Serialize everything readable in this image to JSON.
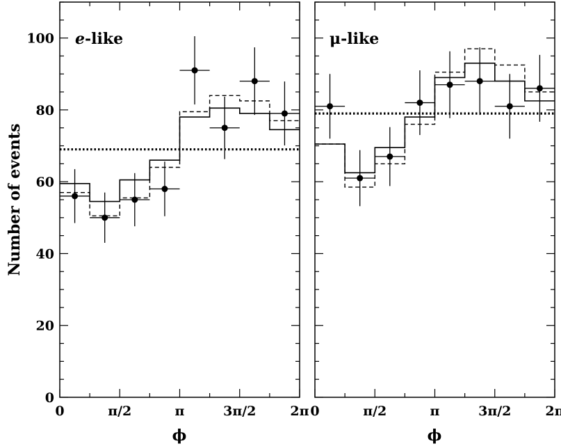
{
  "chart_data": [
    {
      "type": "line",
      "panel_label_italic": "e",
      "panel_label_rest": "-like",
      "xlabel": "ϕ",
      "ylabel": "Number of events",
      "xlim": [
        0,
        6.2832
      ],
      "ylim": [
        0,
        110
      ],
      "x_ticks": [
        0,
        1.5708,
        3.1416,
        4.7124,
        6.2832
      ],
      "x_tick_labels": [
        "0",
        "π/2",
        "π",
        "3π/2",
        "2π"
      ],
      "y_ticks": [
        0,
        20,
        40,
        60,
        80,
        100
      ],
      "y_tick_labels": [
        "0",
        "20",
        "40",
        "60",
        "80",
        "100"
      ],
      "bin_edges": [
        0,
        0.7854,
        1.5708,
        2.3562,
        3.1416,
        3.927,
        4.7124,
        5.4978,
        6.2832
      ],
      "data_points": {
        "x": [
          0.3927,
          1.1781,
          1.9635,
          2.7489,
          3.5343,
          4.3197,
          5.1051,
          5.8905
        ],
        "y": [
          56,
          50,
          55,
          58,
          91,
          75,
          88,
          79
        ],
        "yerr": [
          7.5,
          7,
          7.4,
          7.6,
          9.5,
          8.7,
          9.4,
          8.9
        ]
      },
      "series": [
        {
          "style": "solid",
          "values": [
            59.5,
            54.5,
            60.5,
            66,
            78,
            80.5,
            79,
            74.5
          ]
        },
        {
          "style": "dashed",
          "values": [
            57,
            50.5,
            55.5,
            64,
            79.5,
            84,
            82.5,
            77
          ]
        },
        {
          "style": "dotted",
          "values": [
            69,
            69,
            69,
            69,
            69,
            69,
            69,
            69
          ]
        }
      ]
    },
    {
      "type": "line",
      "panel_label_italic": "",
      "panel_label_rest": "μ-like",
      "xlabel": "ϕ",
      "ylabel": "",
      "xlim": [
        0,
        6.2832
      ],
      "ylim": [
        0,
        110
      ],
      "x_ticks": [
        0,
        1.5708,
        3.1416,
        4.7124,
        6.2832
      ],
      "x_tick_labels": [
        "0",
        "π/2",
        "π",
        "3π/2",
        "2π"
      ],
      "y_ticks": [
        0,
        20,
        40,
        60,
        80,
        100
      ],
      "y_tick_labels": [],
      "bin_edges": [
        0,
        0.7854,
        1.5708,
        2.3562,
        3.1416,
        3.927,
        4.7124,
        5.4978,
        6.2832
      ],
      "data_points": {
        "x": [
          0.3927,
          1.1781,
          1.9635,
          2.7489,
          3.5343,
          4.3197,
          5.1051,
          5.8905
        ],
        "y": [
          81,
          61,
          67,
          82,
          87,
          88,
          81,
          86
        ],
        "yerr": [
          9,
          7.8,
          8.2,
          9,
          9.3,
          9.4,
          9,
          9.3
        ]
      },
      "series": [
        {
          "style": "solid",
          "values": [
            70.5,
            62.5,
            69.5,
            78,
            89,
            93,
            88,
            82.5
          ]
        },
        {
          "style": "dashed",
          "values": [
            70.5,
            58.5,
            65,
            76,
            90.5,
            97,
            92.5,
            85
          ]
        },
        {
          "style": "dotted",
          "values": [
            79,
            79,
            79,
            79,
            79,
            79,
            79,
            79
          ]
        }
      ]
    }
  ]
}
